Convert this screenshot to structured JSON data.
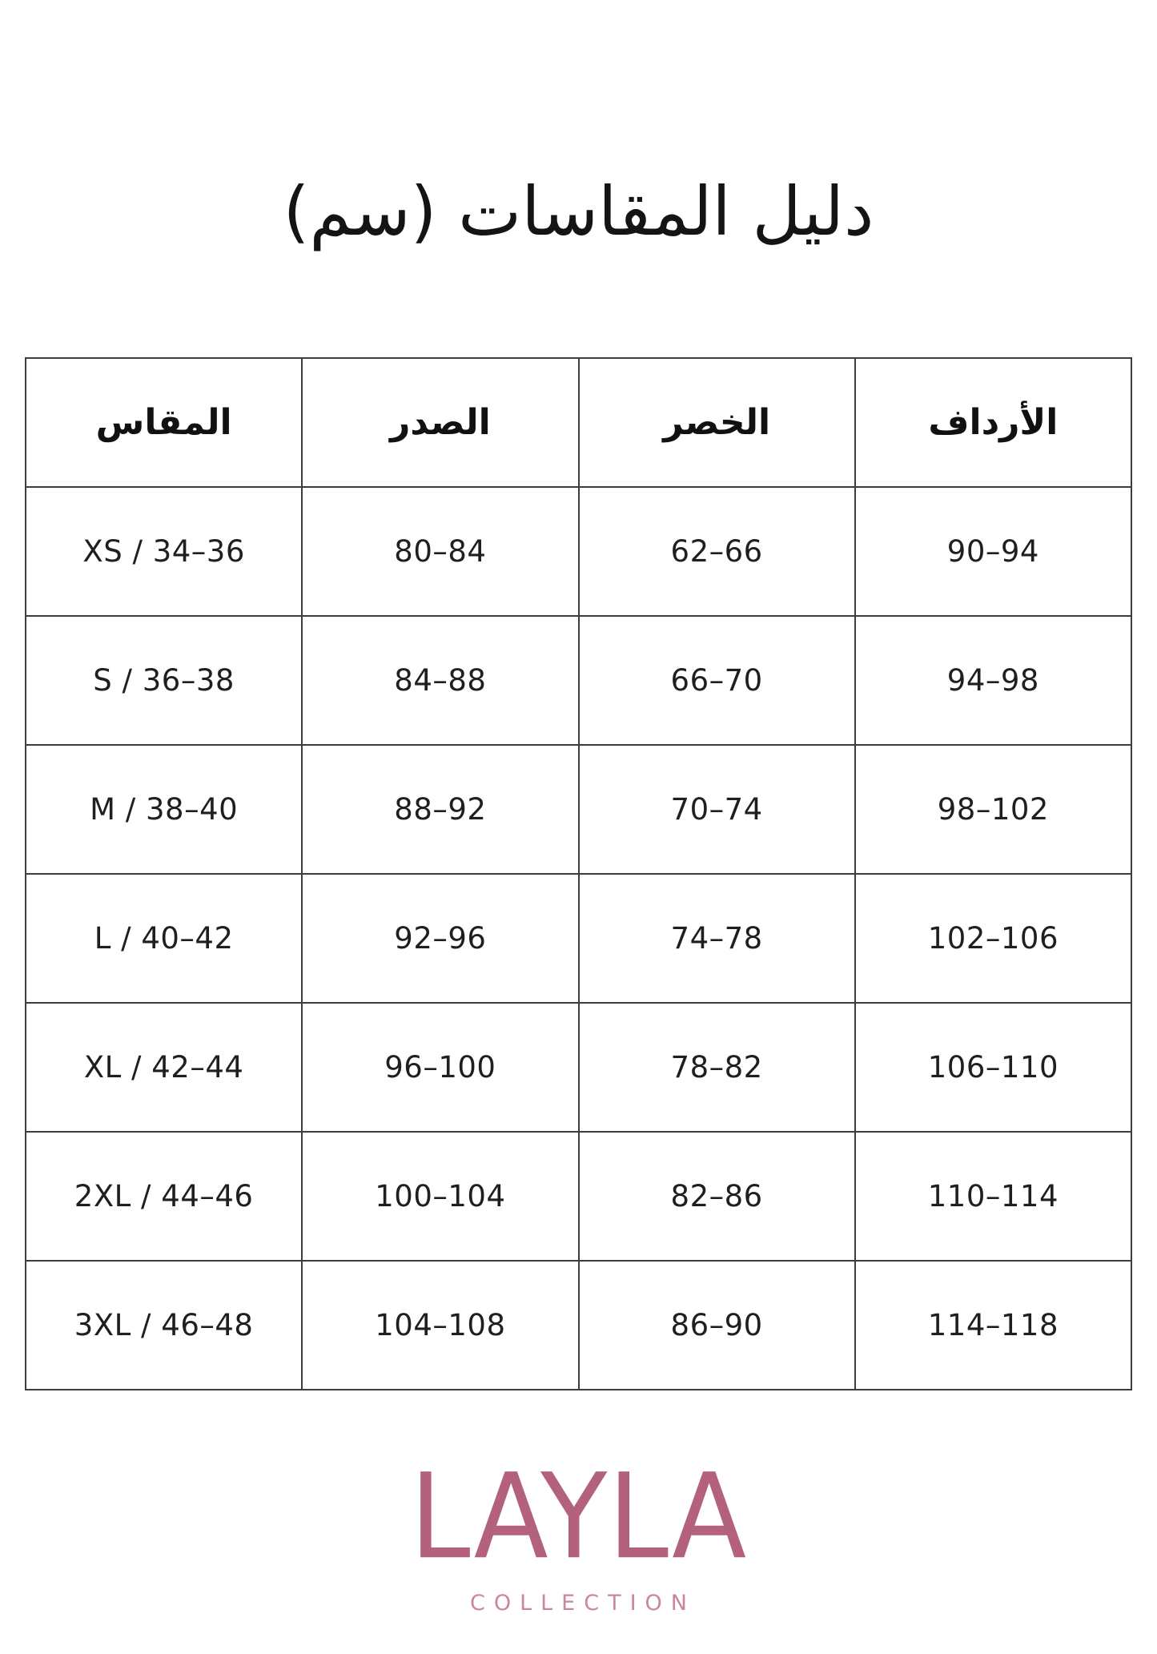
{
  "page": {
    "title": "دليل المقاسات (سم)"
  },
  "table": {
    "headers": {
      "size": "المقاس",
      "chest": "الصدر",
      "waist": "الخصر",
      "hips": "الأرداف"
    },
    "rows": [
      {
        "size": "XS / 34–36",
        "chest": "80–84",
        "waist": "62–66",
        "hips": "90–94"
      },
      {
        "size": "S / 36–38",
        "chest": "84–88",
        "waist": "66–70",
        "hips": "94–98"
      },
      {
        "size": "M / 38–40",
        "chest": "88–92",
        "waist": "70–74",
        "hips": "98–102"
      },
      {
        "size": "L / 40–42",
        "chest": "92–96",
        "waist": "74–78",
        "hips": "102–106"
      },
      {
        "size": "XL / 42–44",
        "chest": "96–100",
        "waist": "78–82",
        "hips": "106–110"
      },
      {
        "size": "2XL / 44–46",
        "chest": "100–104",
        "waist": "82–86",
        "hips": "110–114"
      },
      {
        "size": "3XL / 46–48",
        "chest": "104–108",
        "waist": "86–90",
        "hips": "114–118"
      }
    ]
  },
  "logo": {
    "brand": "LAYLA",
    "tagline": "COLLECTION",
    "brand_color": "#b4617e",
    "tagline_color": "#ca86a0"
  }
}
